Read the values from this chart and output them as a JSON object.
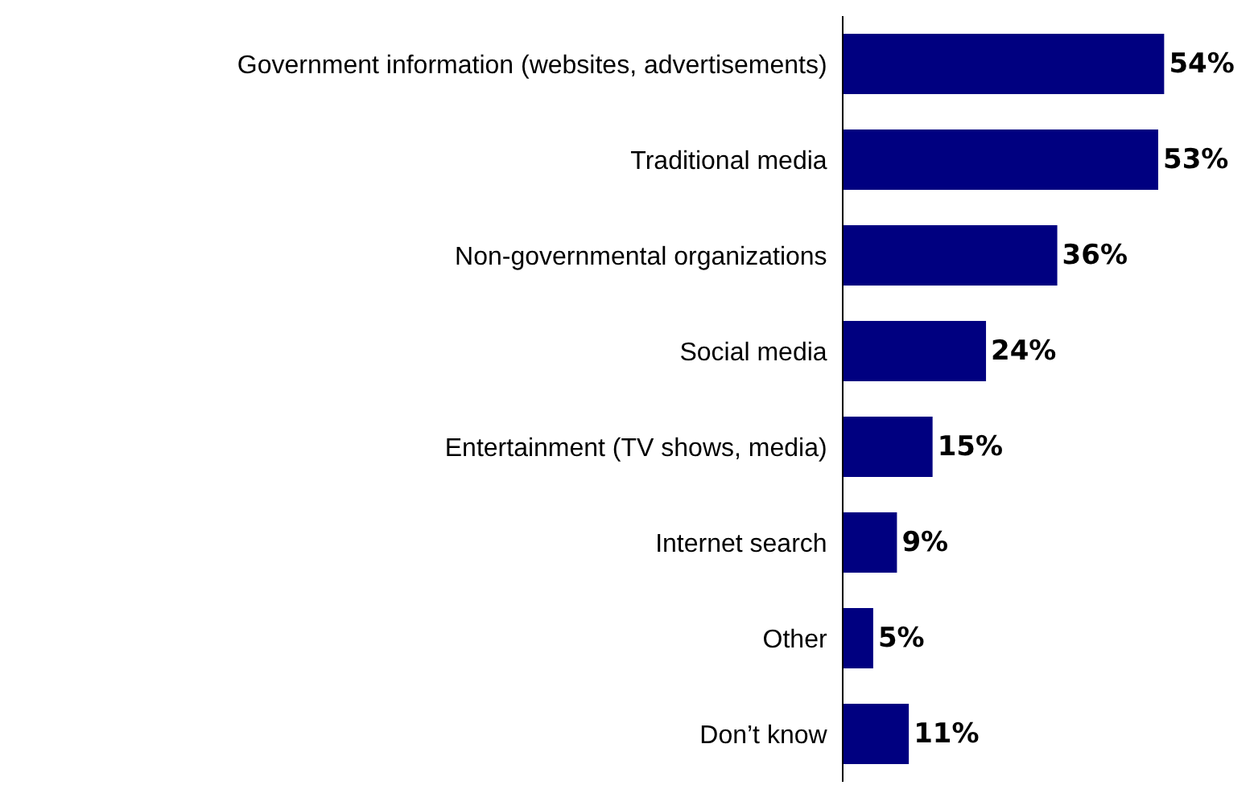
{
  "chart_data": {
    "type": "bar",
    "orientation": "horizontal",
    "categories": [
      "Government information (websites, advertisements)",
      "Traditional media",
      "Non-governmental organizations",
      "Social media",
      "Entertainment (TV shows, media)",
      "Internet search",
      "Other",
      "Don’t know"
    ],
    "values": [
      54,
      53,
      36,
      24,
      15,
      9,
      5,
      11
    ],
    "color": "#000080",
    "value_labels": [
      "54%",
      "53%",
      "36%",
      "24%",
      "15%",
      "9%",
      "5%",
      "11%"
    ]
  }
}
